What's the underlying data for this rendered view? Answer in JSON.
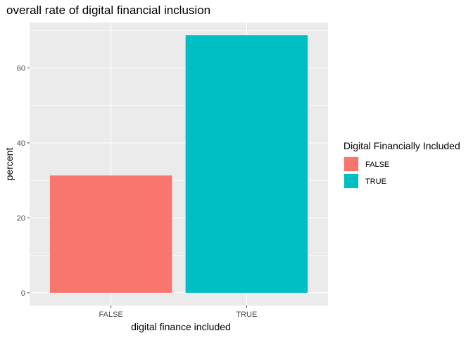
{
  "chart_data": {
    "type": "bar",
    "title": "overall rate of digital financial inclusion",
    "xlabel": "digital finance included",
    "ylabel": "percent",
    "categories": [
      "FALSE",
      "TRUE"
    ],
    "values": [
      31.3,
      68.7
    ],
    "colors": [
      "#F8766D",
      "#00BFC4"
    ],
    "ylim": [
      -3.4,
      72.1
    ],
    "yticks": [
      0,
      20,
      40,
      60
    ],
    "grid": true,
    "background": "#EBEBEB",
    "legend": {
      "title": "Digital Financially Included",
      "entries": [
        "FALSE",
        "TRUE"
      ],
      "position": "right"
    }
  }
}
